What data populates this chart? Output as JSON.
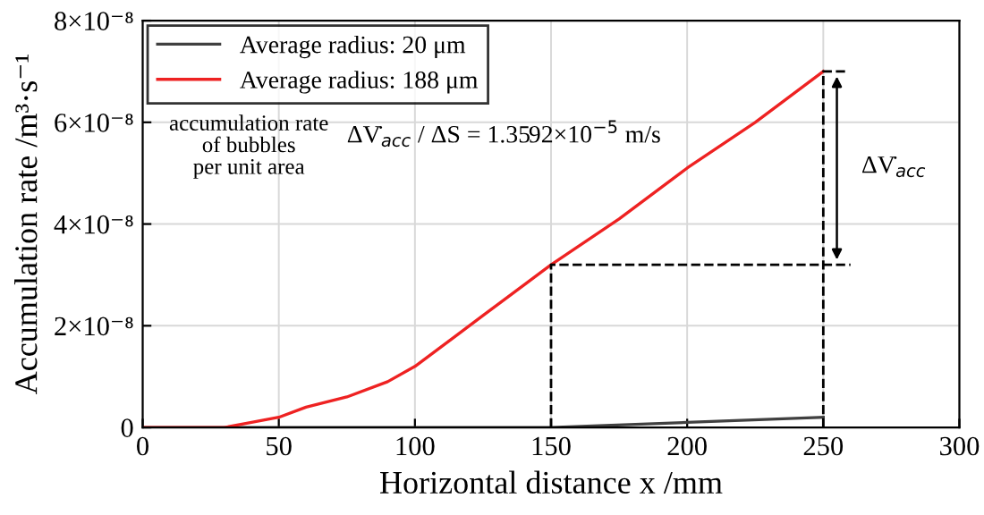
{
  "chart_data": {
    "type": "line",
    "xlabel": "Horizontal distance x /mm",
    "ylabel": "Accumulation rate /m³·s⁻¹",
    "xlim": [
      0,
      300
    ],
    "xticks": [
      0,
      50,
      100,
      150,
      200,
      250,
      300
    ],
    "ylim": [
      0,
      8e-08
    ],
    "yticks": [
      {
        "value": 0,
        "label": "0"
      },
      {
        "value": 2e-08,
        "label": "2×10⁻⁸"
      },
      {
        "value": 4e-08,
        "label": "4×10⁻⁸"
      },
      {
        "value": 6e-08,
        "label": "6×10⁻⁸"
      },
      {
        "value": 8e-08,
        "label": "8×10⁻⁸"
      }
    ],
    "grid": true,
    "legend": "top left",
    "marker": "none",
    "series": [
      {
        "name": "Average radius: 20 μm",
        "color": "#404040",
        "x": [
          0,
          50,
          100,
          150,
          200,
          250
        ],
        "values": [
          0,
          0,
          0,
          0,
          1e-09,
          2e-09
        ]
      },
      {
        "name": "Average radius: 188 μm",
        "color": "#ee2222",
        "x": [
          0,
          20,
          30,
          40,
          50,
          60,
          75,
          90,
          100,
          110,
          125,
          140,
          150,
          175,
          200,
          225,
          250
        ],
        "values": [
          0,
          0,
          0,
          1e-09,
          2e-09,
          4e-09,
          6e-09,
          9e-09,
          1.2e-08,
          1.6e-08,
          2.2e-08,
          2.8e-08,
          3.2e-08,
          4.1e-08,
          5.1e-08,
          6e-08,
          7e-08
        ]
      },
      {
        "color": "#000000",
        "line_style": "dashed",
        "x": [
          150,
          150,
          260
        ],
        "values": [
          0,
          3.2e-08,
          3.2e-08
        ]
      },
      {
        "color": "#000000",
        "line_style": "dashed",
        "x": [
          250,
          250,
          258
        ],
        "values": [
          0,
          7e-08,
          7e-08
        ]
      }
    ],
    "annotations": [
      {
        "text": "accumulation rate\nof bubbles\nper unit area"
      },
      {
        "text": "ΔV̇$_{acc}$ / ΔS = 1.3592×10$^{−5}$ m/s"
      },
      "ΔV̇$_{acc}$"
    ]
  }
}
